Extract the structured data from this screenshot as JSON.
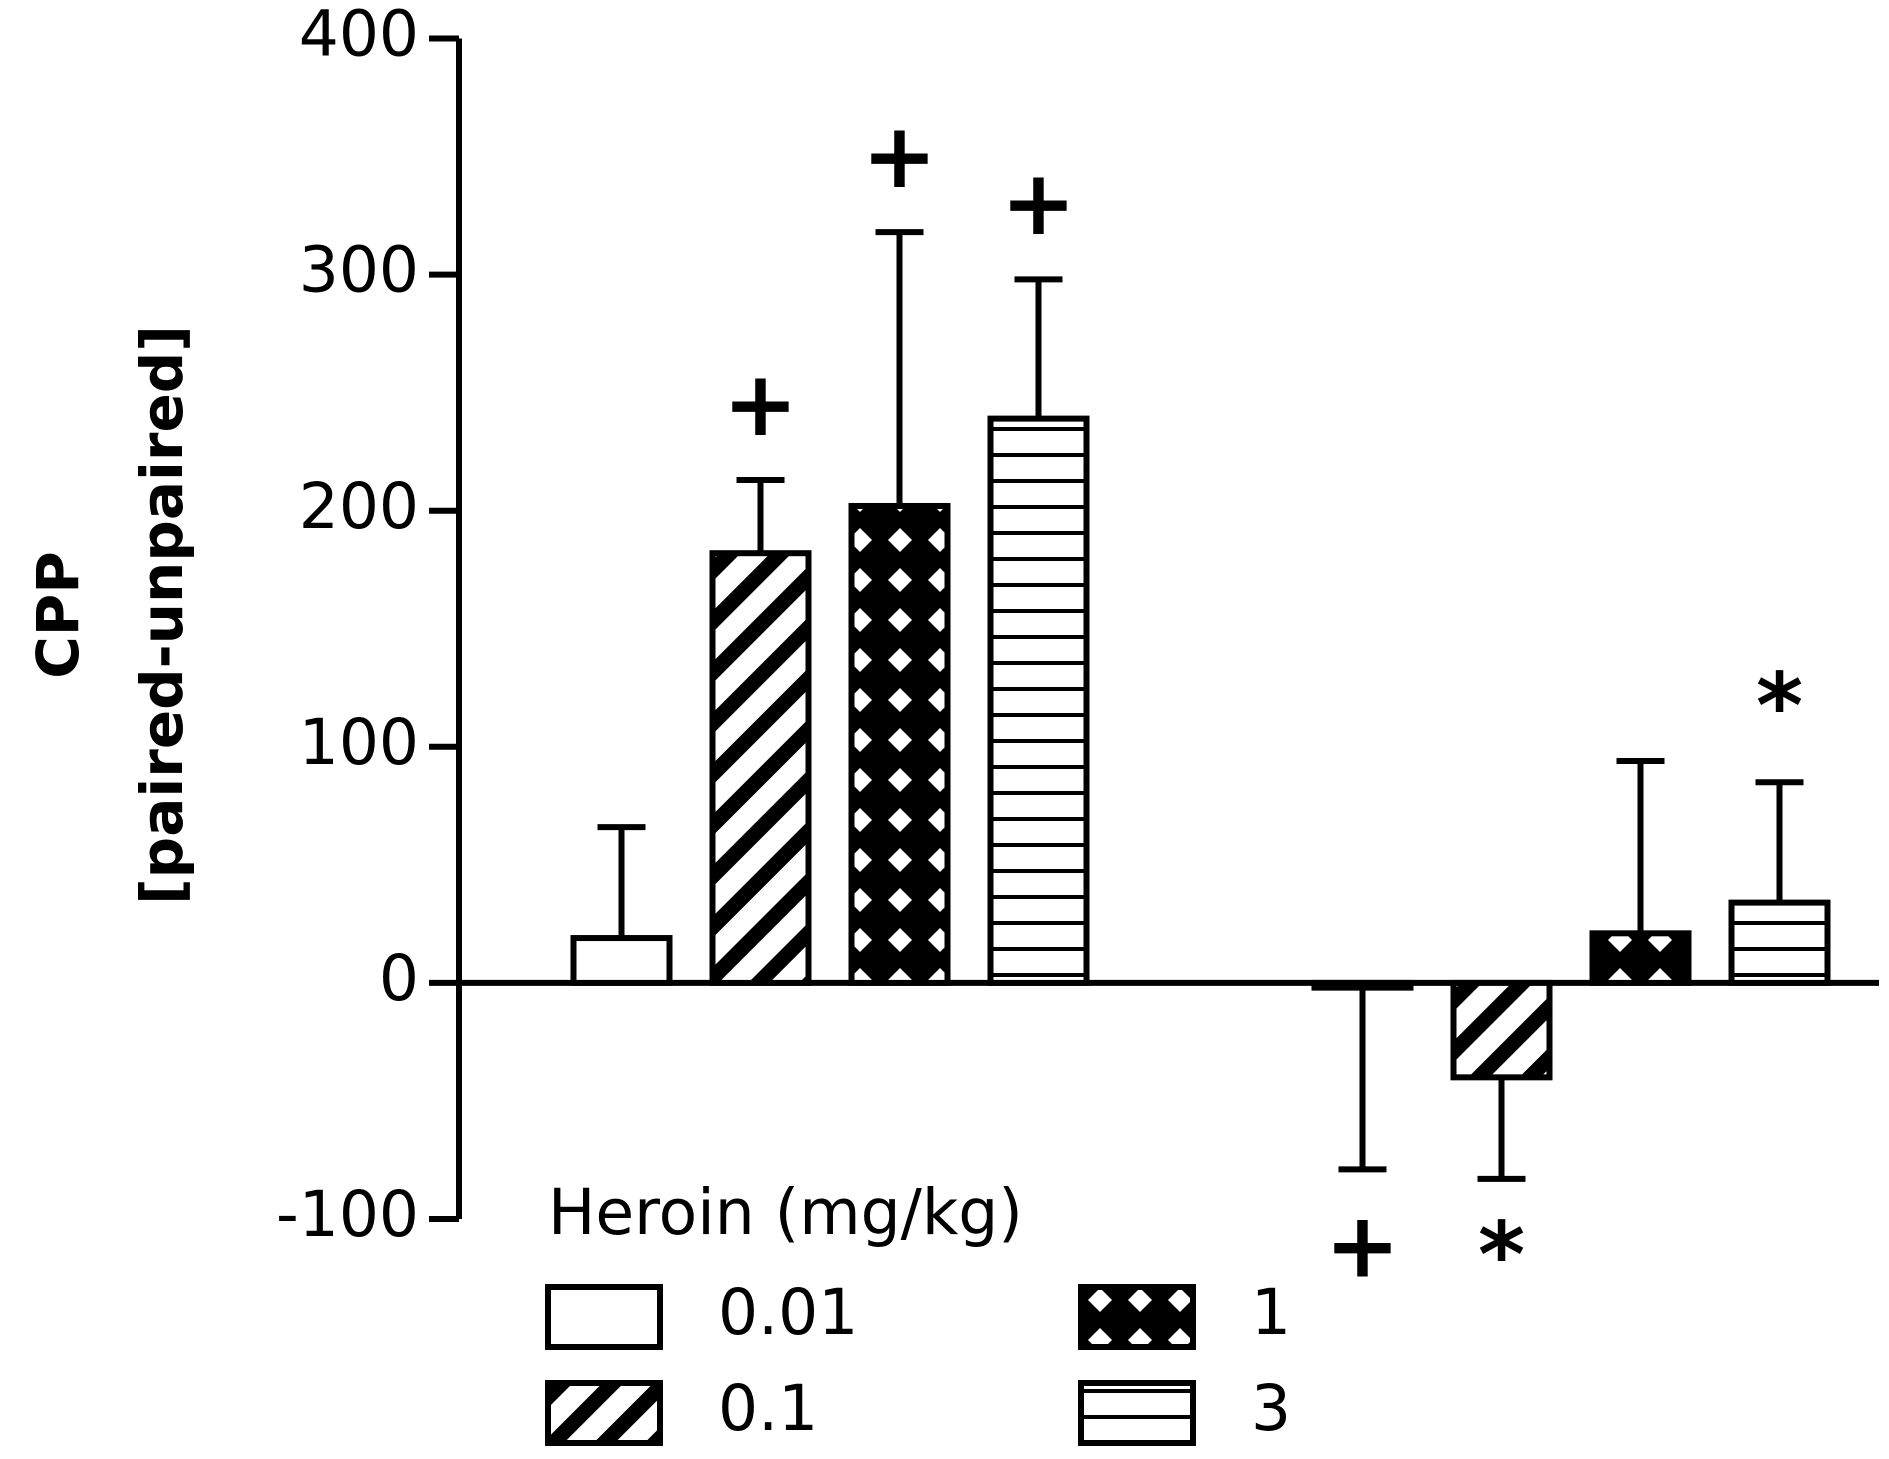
{
  "chart_data": {
    "type": "bar",
    "ylabel": [
      "CPP",
      "[paired-unpaired]"
    ],
    "legend_title": "Heroin (mg/kg)",
    "categories": [
      null,
      null
    ],
    "series": [
      {
        "name": "0.01",
        "color": "#ffffff",
        "hatch": "none",
        "values": [
          19,
          -2
        ],
        "errors": [
          47,
          77
        ],
        "annotations": [
          null,
          "+"
        ]
      },
      {
        "name": "0.1",
        "color": "#ffffff",
        "hatch": "diagonal",
        "values": [
          182,
          -40
        ],
        "errors": [
          31,
          43
        ],
        "annotations": [
          "+",
          "*"
        ]
      },
      {
        "name": "1",
        "color": "#ffffff",
        "hatch": "cross",
        "values": [
          202,
          21
        ],
        "errors": [
          116,
          73
        ],
        "annotations": [
          "+",
          null
        ]
      },
      {
        "name": "3",
        "color": "#ffffff",
        "hatch": "horizontal",
        "values": [
          239,
          34
        ],
        "errors": [
          59,
          51
        ],
        "annotations": [
          "+",
          "*"
        ]
      }
    ],
    "ylim": [
      -100,
      400
    ],
    "yticks": [
      -100,
      0,
      100,
      200,
      300,
      400
    ]
  }
}
